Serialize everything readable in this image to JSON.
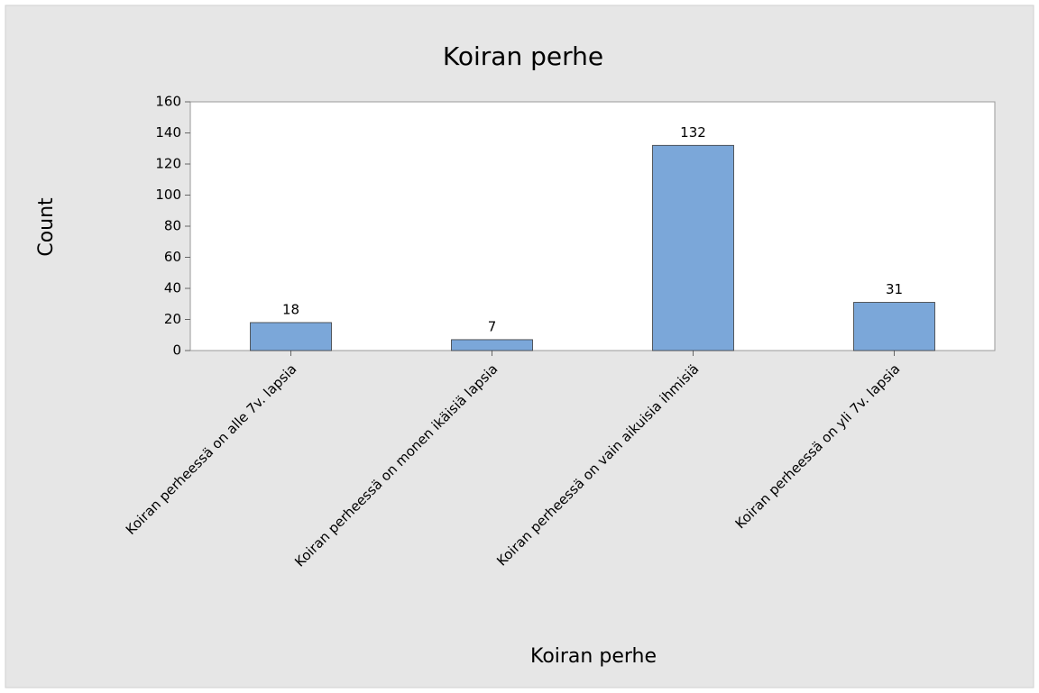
{
  "chart_data": {
    "type": "bar",
    "title": "Koiran perhe",
    "x_label": "Koiran perhe",
    "y_label": "Count",
    "categories": [
      "Koiran perheessä on alle 7v. lapsia",
      "Koiran perheessä on monen ikäisiä lapsia",
      "Koiran perheessä on vain aikuisia ihmisiä",
      "Koiran perheessä on yli 7v. lapsia"
    ],
    "values": [
      18,
      7,
      132,
      31
    ],
    "color": "#7ba7d9",
    "ylim": [
      0,
      160
    ],
    "yticks": [
      0,
      20,
      40,
      60,
      80,
      100,
      120,
      140,
      160
    ],
    "grid": false
  }
}
